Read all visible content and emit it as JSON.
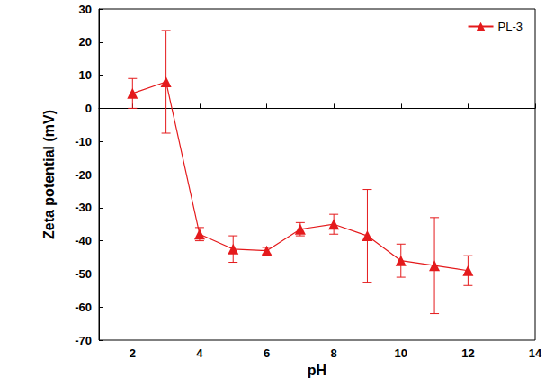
{
  "chart_data": {
    "type": "line",
    "x_label": "pH",
    "y_label": "Zeta potential (mV)",
    "x": [
      2,
      3,
      4,
      5,
      6,
      7,
      8,
      9,
      10,
      11,
      12
    ],
    "series": [
      {
        "name": "PL-3",
        "color": "#e41a1c",
        "marker": "triangle",
        "values": [
          4.5,
          8,
          -38,
          -42.5,
          -43,
          -36.5,
          -35,
          -38.5,
          -46,
          -47.5,
          -49
        ],
        "errors": [
          4.5,
          15.5,
          2,
          4,
          1,
          2,
          3,
          14,
          5,
          14.5,
          4.5
        ]
      }
    ],
    "xlim": [
      1,
      14
    ],
    "xticks": [
      2,
      4,
      6,
      8,
      10,
      12,
      14
    ],
    "ylim": [
      -70,
      30
    ],
    "yticks": [
      -70,
      -60,
      -50,
      -40,
      -30,
      -20,
      -10,
      0,
      10,
      20,
      30
    ],
    "grid": false,
    "legend": "upper right"
  }
}
